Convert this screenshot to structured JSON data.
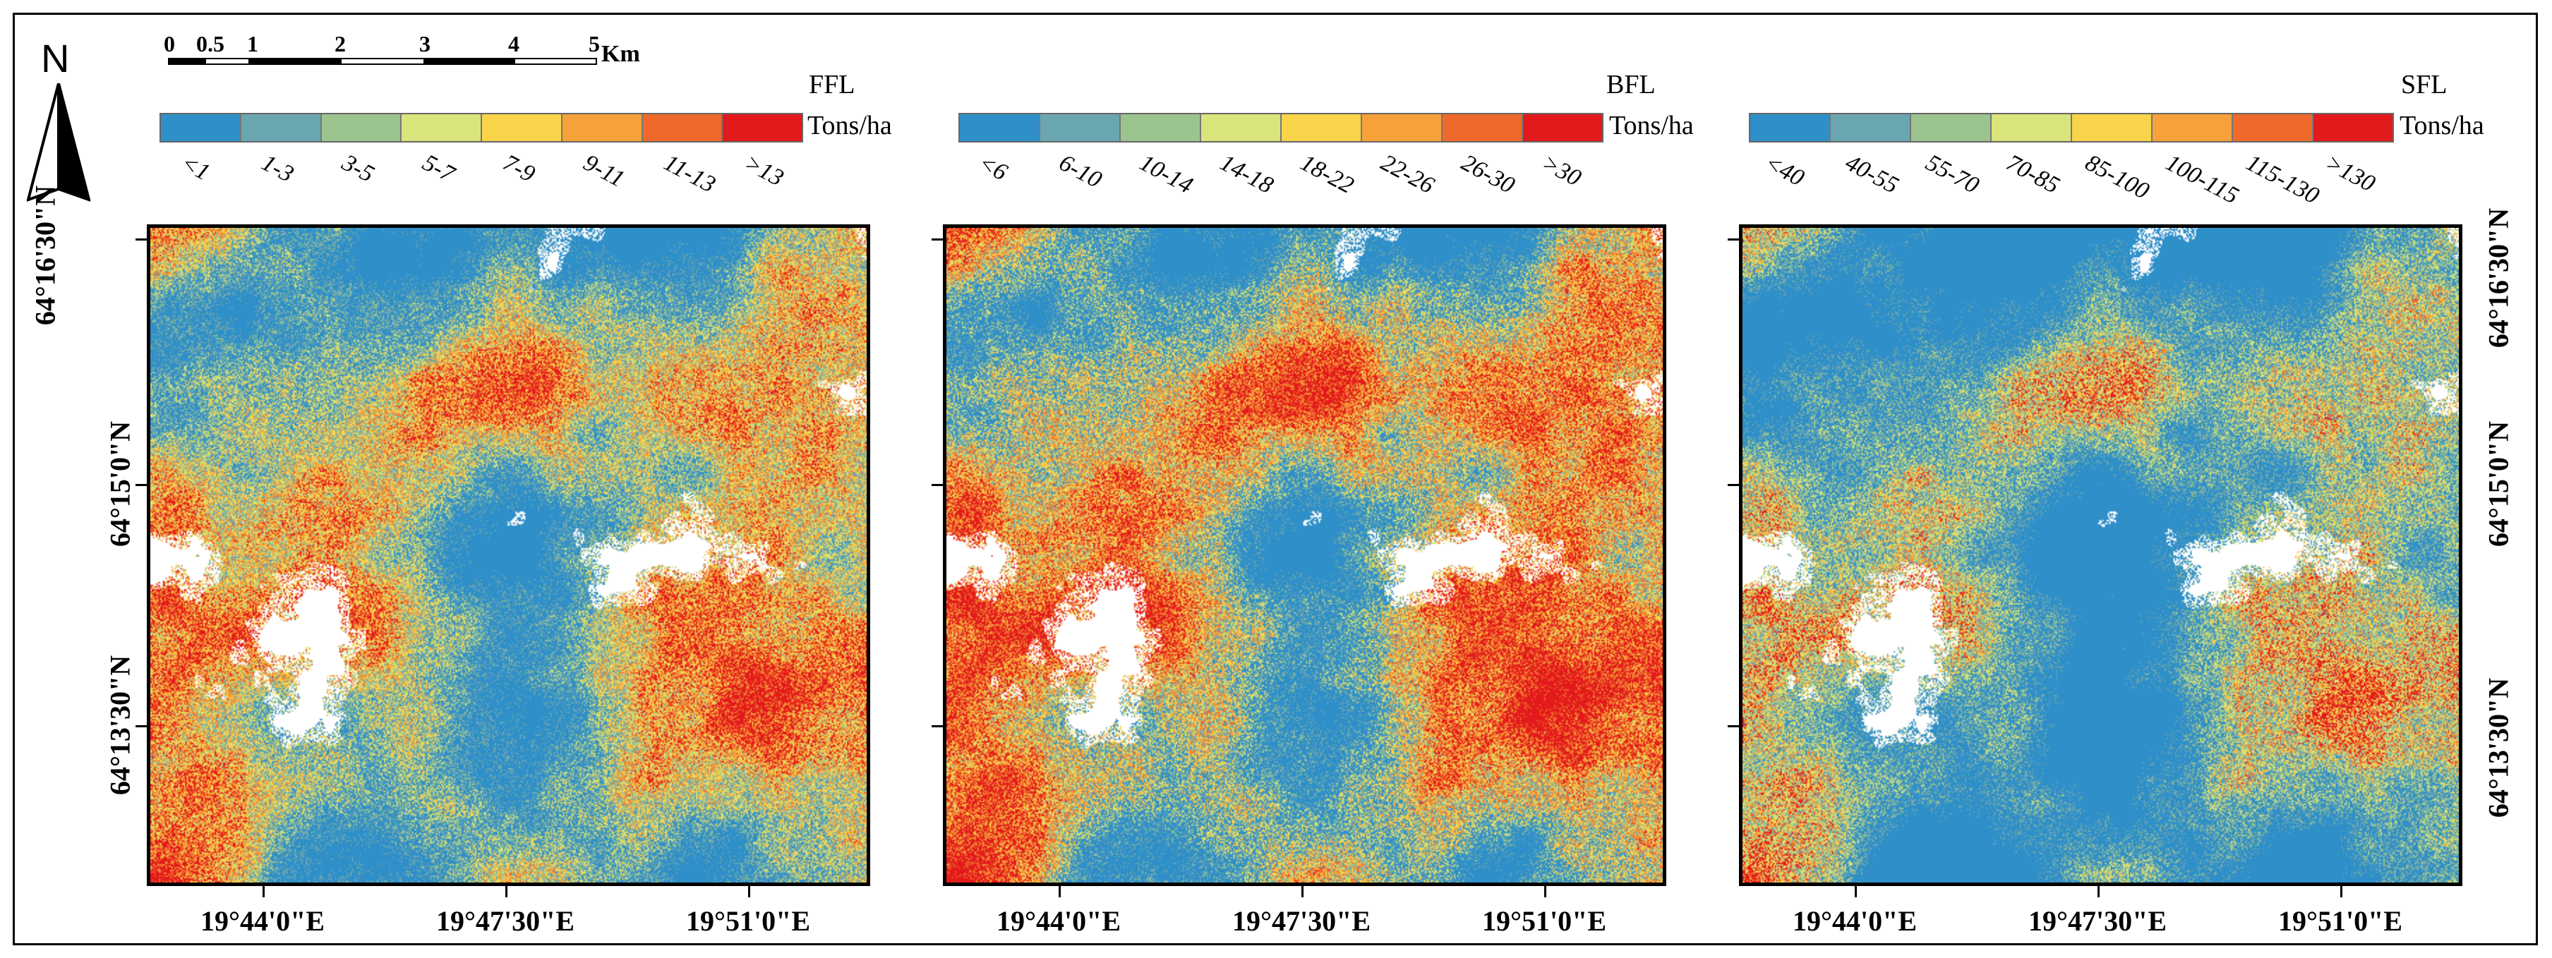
{
  "north_arrow": {
    "label": "N"
  },
  "scale_bar": {
    "ticks": [
      "0",
      "0.5",
      "1",
      "2",
      "3",
      "4",
      "5"
    ],
    "unit": "Km"
  },
  "palette": [
    "#2f8fc8",
    "#6aa6b0",
    "#9cc48f",
    "#d9e57a",
    "#f7d44a",
    "#f6a13a",
    "#ef6a2a",
    "#e31a1c"
  ],
  "panels": [
    {
      "title": "FFL",
      "unit": "Tons/ha",
      "classes": [
        "<1",
        "1-3",
        "3-5",
        "5-7",
        "7-9",
        "9-11",
        "11-13",
        ">13"
      ],
      "class_shares": [
        0.24,
        0.14,
        0.12,
        0.1,
        0.13,
        0.11,
        0.08,
        0.08
      ]
    },
    {
      "title": "BFL",
      "unit": "Tons/ha",
      "classes": [
        "<6",
        "6-10",
        "10-14",
        "14-18",
        "18-22",
        "22-26",
        "26-30",
        ">30"
      ],
      "class_shares": [
        0.22,
        0.1,
        0.08,
        0.08,
        0.12,
        0.14,
        0.12,
        0.14
      ]
    },
    {
      "title": "SFL",
      "unit": "Tons/ha",
      "classes": [
        "<40",
        "40-55",
        "55-70",
        "70-85",
        "85-100",
        "100-115",
        "115-130",
        ">130"
      ],
      "class_shares": [
        0.46,
        0.14,
        0.14,
        0.1,
        0.06,
        0.04,
        0.03,
        0.03
      ]
    }
  ],
  "axes": {
    "longitude_labels": [
      "19°44'0\"E",
      "19°47'30\"E",
      "19°51'0\"E"
    ],
    "latitude_labels": [
      "64°16'30\"N",
      "64°15'0\"N",
      "64°13'30\"N"
    ]
  }
}
